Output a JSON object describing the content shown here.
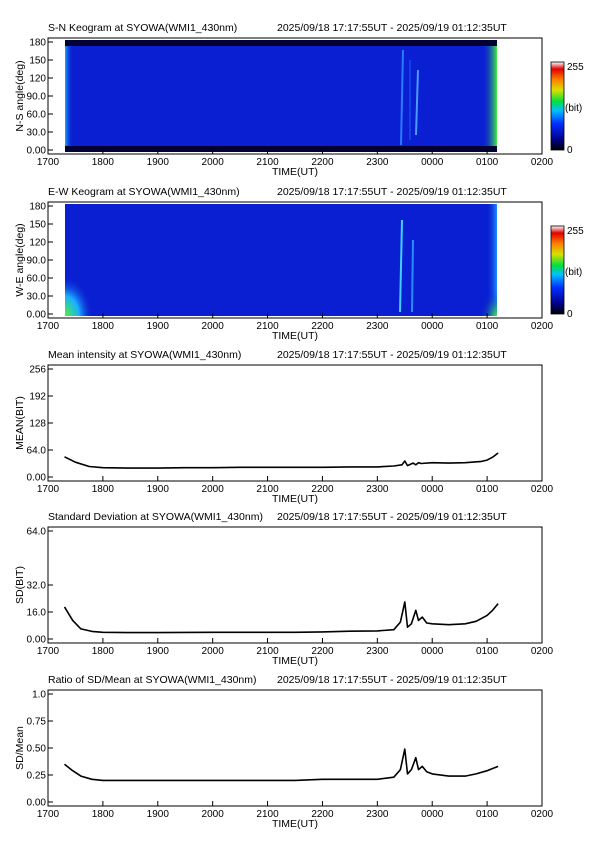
{
  "header_right": "2025/09/18 17:17:55UT - 2025/09/19 01:12:35UT",
  "x_ticks": [
    "1700",
    "1800",
    "1900",
    "2000",
    "2100",
    "2200",
    "2300",
    "0000",
    "0100",
    "0200"
  ],
  "x_label": "TIME(UT)",
  "colorbar": {
    "max_label": "255",
    "unit_label": "(bit)",
    "min_label": "0"
  },
  "chart_data": [
    {
      "type": "heatmap",
      "title": "S-N Keogram at SYOWA(WMI1_430nm)",
      "ylabel": "N-S angle(deg)",
      "xlabel": "TIME(UT)",
      "x_range": [
        "1700",
        "0200"
      ],
      "data_x_range": [
        "17:17:55",
        "01:12:35"
      ],
      "ylim": [
        0,
        180
      ],
      "y_ticks": [
        "0.00",
        "30.0",
        "60.0",
        "90.0",
        "120",
        "150",
        "180"
      ],
      "colorbar_range": [
        0,
        255
      ],
      "colors": {
        "background": "#0a1fd2",
        "low": "#000040",
        "edge_glow": "#3ff03c"
      }
    },
    {
      "type": "heatmap",
      "title": "E-W Keogram at SYOWA(WMI1_430nm)",
      "ylabel": "W-E angle(deg)",
      "xlabel": "TIME(UT)",
      "x_range": [
        "1700",
        "0200"
      ],
      "data_x_range": [
        "17:17:55",
        "01:12:35"
      ],
      "ylim": [
        0,
        180
      ],
      "y_ticks": [
        "0.00",
        "30.0",
        "60.0",
        "90.0",
        "120",
        "150",
        "180"
      ],
      "colorbar_range": [
        0,
        255
      ],
      "colors": {
        "background": "#0a1fd2",
        "edge_glow": "#3ff03c"
      }
    },
    {
      "type": "line",
      "title": "Mean intensity at SYOWA(WMI1_430nm)",
      "ylabel": "MEAN(BIT)",
      "xlabel": "TIME(UT)",
      "ylim": [
        0,
        256
      ],
      "y_ticks": [
        "0.00",
        "64.0",
        "128",
        "192",
        "256"
      ],
      "y_tick_values": [
        0,
        64,
        128,
        192,
        256
      ],
      "x": [
        17.3,
        17.5,
        17.75,
        18.0,
        18.5,
        19.0,
        19.5,
        20.0,
        20.5,
        21.0,
        21.5,
        22.0,
        22.5,
        23.0,
        23.3,
        23.45,
        23.5,
        23.55,
        23.65,
        23.7,
        23.75,
        23.8,
        24.0,
        24.3,
        24.6,
        24.9,
        25.0,
        25.1,
        25.2
      ],
      "y": [
        48,
        35,
        25,
        22,
        21,
        21,
        22,
        22,
        23,
        23,
        23,
        23,
        24,
        24,
        26,
        29,
        38,
        27,
        33,
        29,
        34,
        32,
        34,
        33,
        34,
        37,
        40,
        47,
        57
      ]
    },
    {
      "type": "line",
      "title": "Standard Deviation at SYOWA(WMI1_430nm)",
      "ylabel": "SD(BIT)",
      "xlabel": "TIME(UT)",
      "ylim": [
        0,
        64
      ],
      "y_ticks": [
        "0.00",
        "16.0",
        "32.0",
        "64.0"
      ],
      "y_tick_values": [
        0,
        16,
        32,
        64
      ],
      "x": [
        17.3,
        17.45,
        17.6,
        17.8,
        18.0,
        18.5,
        19.0,
        19.5,
        20.0,
        20.5,
        21.0,
        21.5,
        22.0,
        22.5,
        23.0,
        23.3,
        23.42,
        23.5,
        23.55,
        23.62,
        23.7,
        23.75,
        23.82,
        23.9,
        24.0,
        24.3,
        24.6,
        24.8,
        25.0,
        25.1,
        25.2
      ],
      "y": [
        19,
        11,
        6,
        4.5,
        4,
        3.8,
        3.8,
        3.9,
        4,
        4,
        4,
        4,
        4.2,
        4.6,
        4.8,
        5.5,
        10,
        22,
        7,
        9,
        17,
        11,
        13,
        9.5,
        9,
        8.5,
        9,
        10.5,
        14,
        17,
        21
      ]
    },
    {
      "type": "line",
      "title": "Ratio of SD/Mean at SYOWA(WMI1_430nm)",
      "ylabel": "SD/Mean",
      "xlabel": "TIME(UT)",
      "ylim": [
        0,
        1.0
      ],
      "y_ticks": [
        "0.00",
        "0.25",
        "0.50",
        "0.75",
        "1.0"
      ],
      "y_tick_values": [
        0,
        0.25,
        0.5,
        0.75,
        1.0
      ],
      "x": [
        17.3,
        17.45,
        17.6,
        17.8,
        18.0,
        18.5,
        19.0,
        19.5,
        20.0,
        20.5,
        21.0,
        21.5,
        22.0,
        22.5,
        23.0,
        23.3,
        23.42,
        23.5,
        23.55,
        23.62,
        23.7,
        23.75,
        23.82,
        23.9,
        24.0,
        24.3,
        24.6,
        24.8,
        25.0,
        25.1,
        25.2
      ],
      "y": [
        0.35,
        0.29,
        0.24,
        0.21,
        0.2,
        0.2,
        0.2,
        0.2,
        0.2,
        0.2,
        0.2,
        0.2,
        0.21,
        0.21,
        0.21,
        0.23,
        0.3,
        0.49,
        0.26,
        0.3,
        0.41,
        0.3,
        0.33,
        0.28,
        0.26,
        0.24,
        0.24,
        0.26,
        0.29,
        0.31,
        0.33
      ]
    }
  ]
}
